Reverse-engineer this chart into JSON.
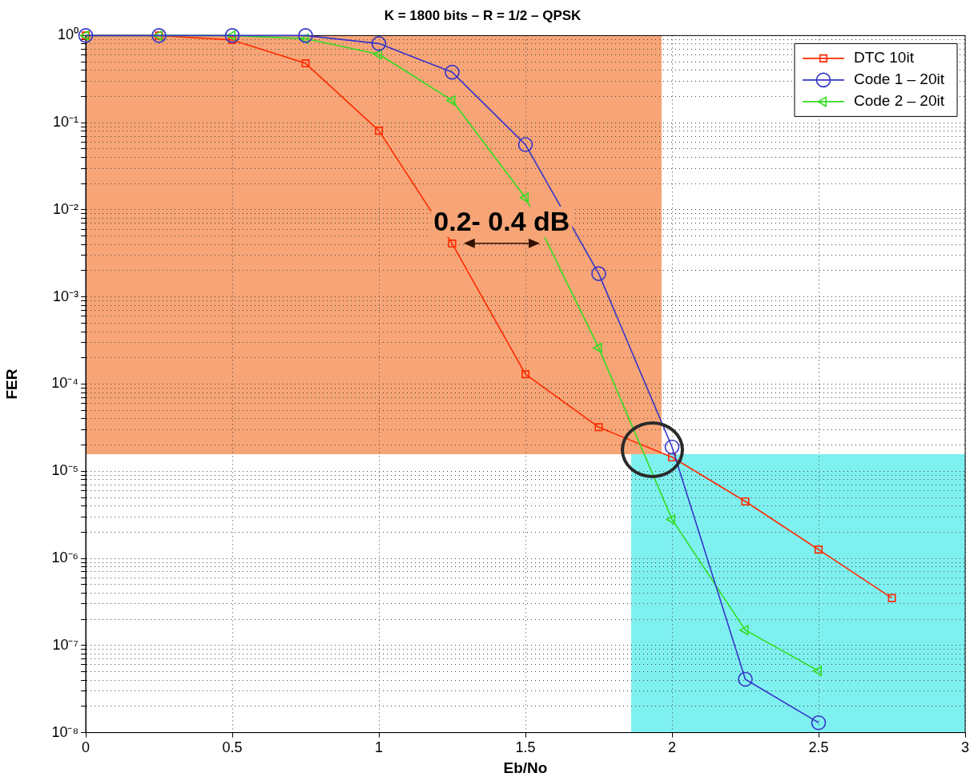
{
  "chart_data": {
    "type": "line",
    "title": "K = 1800 bits – R = 1/2 – QPSK",
    "xlabel": "Eb/No",
    "ylabel": "FER",
    "series": [
      {
        "name": "DTC 10it",
        "color": "#ff2a00",
        "marker": "square",
        "x": [
          0,
          0.25,
          0.5,
          0.75,
          1,
          1.25,
          1.5,
          1.75,
          2,
          2.25,
          2.5,
          2.75
        ],
        "values": [
          1,
          1,
          0.89,
          0.48,
          0.081,
          0.0041,
          0.00013,
          3.2e-05,
          1.45e-05,
          4.5e-06,
          1.26e-06,
          3.5e-07
        ]
      },
      {
        "name": "Code 1 – 20it",
        "color": "#3535c8",
        "marker": "circle",
        "x": [
          0,
          0.25,
          0.5,
          0.75,
          1,
          1.25,
          1.5,
          1.75,
          2,
          2.25,
          2.5
        ],
        "values": [
          1,
          1,
          1,
          1,
          0.81,
          0.38,
          0.056,
          0.00185,
          1.9e-05,
          4.1e-08,
          1.3e-08
        ]
      },
      {
        "name": "Code 2 – 20it",
        "color": "#33dd22",
        "marker": "triangle",
        "x": [
          0,
          0.25,
          0.5,
          0.75,
          1,
          1.25,
          1.5,
          1.75,
          2,
          2.25,
          2.5
        ],
        "values": [
          1,
          1,
          1,
          0.92,
          0.61,
          0.18,
          0.0138,
          0.00026,
          2.8e-06,
          1.5e-07,
          5.1e-08
        ]
      }
    ],
    "log": "y",
    "xlim": [
      0,
      3
    ],
    "xticks": [
      0,
      0.5,
      1,
      1.5,
      2,
      2.5,
      3
    ],
    "ylim": [
      1e-08,
      1
    ],
    "yticks": [
      {
        "value": 1e-08,
        "label": "10⁻⁸"
      },
      {
        "value": 2e-08,
        "label": null
      },
      {
        "value": 3e-08,
        "label": null
      },
      {
        "value": 4e-08,
        "label": null
      },
      {
        "value": 5e-08,
        "label": null
      },
      {
        "value": 6e-08,
        "label": null
      },
      {
        "value": 7e-08,
        "label": null
      },
      {
        "value": 8e-08,
        "label": null
      },
      {
        "value": 9e-08,
        "label": null
      },
      {
        "value": 1e-07,
        "label": "10⁻⁷"
      },
      {
        "value": 2e-07,
        "label": null
      },
      {
        "value": 3e-07,
        "label": null
      },
      {
        "value": 4e-07,
        "label": null
      },
      {
        "value": 5e-07,
        "label": null
      },
      {
        "value": 6e-07,
        "label": null
      },
      {
        "value": 7e-07,
        "label": null
      },
      {
        "value": 8e-07,
        "label": null
      },
      {
        "value": 9e-07,
        "label": null
      },
      {
        "value": 1e-06,
        "label": "10⁻⁶"
      },
      {
        "value": 2e-06,
        "label": null
      },
      {
        "value": 3e-06,
        "label": null
      },
      {
        "value": 4e-06,
        "label": null
      },
      {
        "value": 5e-06,
        "label": null
      },
      {
        "value": 6e-06,
        "label": null
      },
      {
        "value": 7e-06,
        "label": null
      },
      {
        "value": 8e-06,
        "label": null
      },
      {
        "value": 9e-06,
        "label": null
      },
      {
        "value": 1e-05,
        "label": "10⁻⁵"
      },
      {
        "value": 2e-05,
        "label": null
      },
      {
        "value": 3e-05,
        "label": null
      },
      {
        "value": 4e-05,
        "label": null
      },
      {
        "value": 5e-05,
        "label": null
      },
      {
        "value": 6e-05,
        "label": null
      },
      {
        "value": 7e-05,
        "label": null
      },
      {
        "value": 8e-05,
        "label": null
      },
      {
        "value": 9e-05,
        "label": null
      },
      {
        "value": 0.0001,
        "label": "10⁻⁴"
      },
      {
        "value": 0.0002,
        "label": null
      },
      {
        "value": 0.0003,
        "label": null
      },
      {
        "value": 0.0004,
        "label": null
      },
      {
        "value": 0.0005,
        "label": null
      },
      {
        "value": 0.0006,
        "label": null
      },
      {
        "value": 0.0007,
        "label": null
      },
      {
        "value": 0.0008,
        "label": null
      },
      {
        "value": 0.0009,
        "label": null
      },
      {
        "value": 0.001,
        "label": "10⁻³"
      },
      {
        "value": 0.002,
        "label": null
      },
      {
        "value": 0.003,
        "label": null
      },
      {
        "value": 0.004,
        "label": null
      },
      {
        "value": 0.005,
        "label": null
      },
      {
        "value": 0.006,
        "label": null
      },
      {
        "value": 0.007,
        "label": null
      },
      {
        "value": 0.008,
        "label": null
      },
      {
        "value": 0.009,
        "label": null
      },
      {
        "value": 0.01,
        "label": "10⁻²"
      },
      {
        "value": 0.02,
        "label": null
      },
      {
        "value": 0.03,
        "label": null
      },
      {
        "value": 0.04,
        "label": null
      },
      {
        "value": 0.05,
        "label": null
      },
      {
        "value": 0.06,
        "label": null
      },
      {
        "value": 0.07,
        "label": null
      },
      {
        "value": 0.08,
        "label": null
      },
      {
        "value": 0.09,
        "label": null
      },
      {
        "value": 0.1,
        "label": "10⁻¹"
      },
      {
        "value": 0.2,
        "label": null
      },
      {
        "value": 0.3,
        "label": null
      },
      {
        "value": 0.4,
        "label": null
      },
      {
        "value": 0.5,
        "label": null
      },
      {
        "value": 0.6,
        "label": null
      },
      {
        "value": 0.7,
        "label": null
      },
      {
        "value": 0.8,
        "label": null
      },
      {
        "value": 0.9,
        "label": null
      },
      {
        "value": 1,
        "label": "10⁰"
      }
    ],
    "grid": true,
    "legend": "top right",
    "line_style": "solid",
    "annotations": [
      "0.2- 0.4 dB"
    ]
  }
}
